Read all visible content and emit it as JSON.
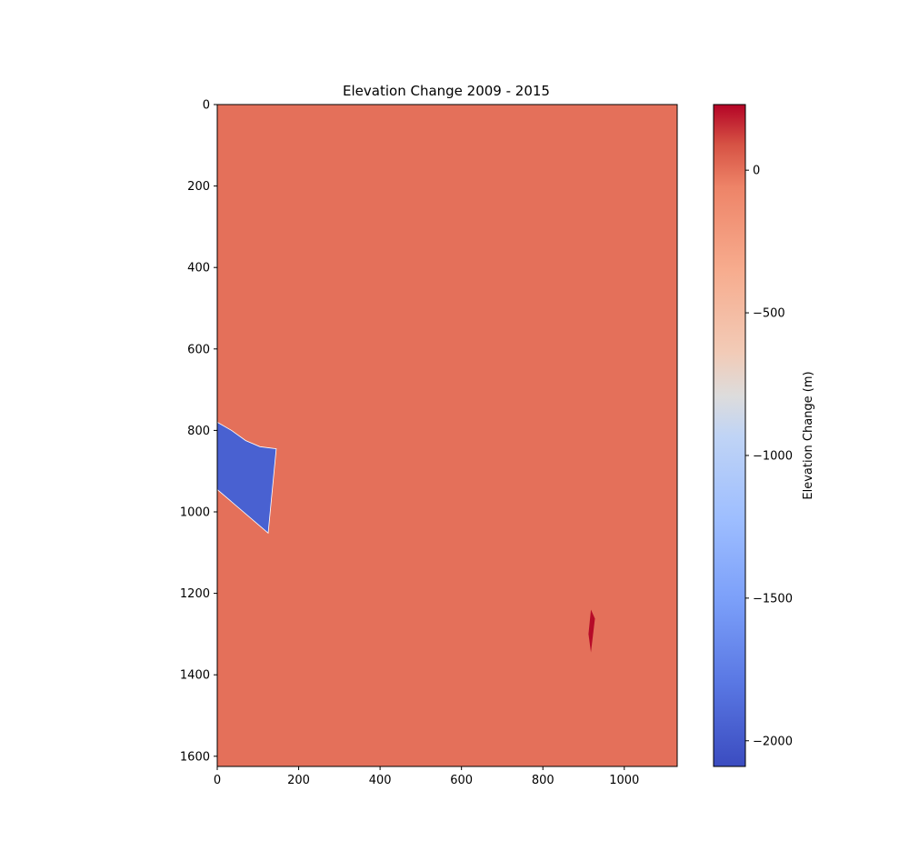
{
  "chart_data": {
    "type": "heatmap",
    "title": "Elevation Change 2009 - 2015",
    "xlabel": "",
    "ylabel": "",
    "xlim": [
      0,
      1130
    ],
    "ylim": [
      1625,
      0
    ],
    "x_ticks": [
      0,
      200,
      400,
      600,
      800,
      1000
    ],
    "y_ticks": [
      0,
      200,
      400,
      600,
      800,
      1000,
      1200,
      1400,
      1600
    ],
    "colormap": "coolwarm",
    "colorbar": {
      "label": "Elevation Change (m)",
      "range": [
        -2090,
        230
      ],
      "ticks": [
        0,
        -500,
        -1000,
        -1500,
        -2000
      ],
      "tick_labels": [
        "0",
        "−500",
        "−1000",
        "−1500",
        "−2000"
      ]
    },
    "background_value": 0,
    "regions": [
      {
        "value": -1950,
        "polygon": [
          [
            0,
            780
          ],
          [
            35,
            800
          ],
          [
            70,
            825
          ],
          [
            105,
            840
          ],
          [
            145,
            845
          ],
          [
            125,
            1052
          ],
          [
            0,
            945
          ]
        ]
      },
      {
        "value": 220,
        "polygon": [
          [
            918,
            1240
          ],
          [
            928,
            1262
          ],
          [
            918,
            1345
          ],
          [
            912,
            1300
          ]
        ]
      }
    ],
    "grid": false,
    "legend": "none"
  }
}
